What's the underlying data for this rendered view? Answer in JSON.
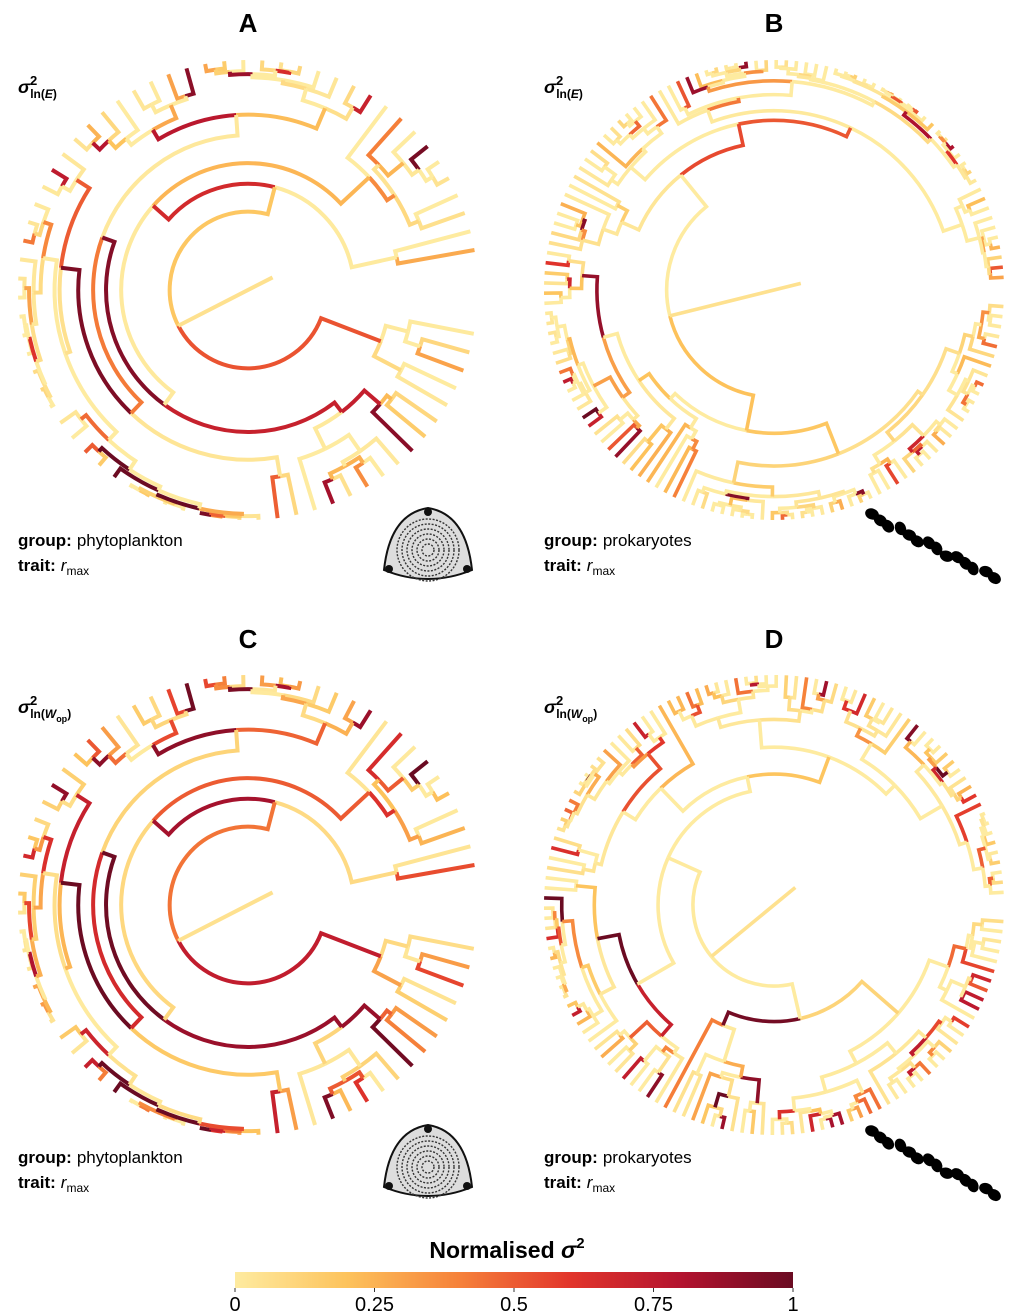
{
  "panels": [
    {
      "letter": "A",
      "variable": {
        "symbol": "σ",
        "superscript": "2",
        "sub_pre": "ln(",
        "sub_var": "E",
        "sub_post": ")"
      },
      "group_label": "group:",
      "group": "phytoplankton",
      "trait_label": "trait:",
      "trait_symbol": "r",
      "trait_subscript": "max"
    },
    {
      "letter": "B",
      "variable": {
        "symbol": "σ",
        "superscript": "2",
        "sub_pre": "ln(",
        "sub_var": "E",
        "sub_post": ")"
      },
      "group_label": "group:",
      "group": "prokaryotes",
      "trait_label": "trait:",
      "trait_symbol": "r",
      "trait_subscript": "max"
    },
    {
      "letter": "C",
      "variable": {
        "symbol": "σ",
        "superscript": "2",
        "sub_pre": "ln(",
        "sub_var": "W",
        "sub_sub": "op",
        "sub_post": ")"
      },
      "group_label": "group:",
      "group": "phytoplankton",
      "trait_label": "trait:",
      "trait_symbol": "r",
      "trait_subscript": "max"
    },
    {
      "letter": "D",
      "variable": {
        "symbol": "σ",
        "superscript": "2",
        "sub_pre": "ln(",
        "sub_var": "W",
        "sub_sub": "op",
        "sub_post": ")"
      },
      "group_label": "group:",
      "group": "prokaryotes",
      "trait_label": "trait:",
      "trait_symbol": "r",
      "trait_subscript": "max"
    }
  ],
  "colorbar": {
    "title": "Normalised ",
    "title_symbol": "σ",
    "title_superscript": "2",
    "lim": [
      0,
      1
    ],
    "ticks": [
      0,
      0.25,
      0.5,
      0.75,
      1
    ],
    "colors": [
      "#feeba0",
      "#fdc35c",
      "#f6823a",
      "#e2352b",
      "#b3132f",
      "#6a0b22"
    ]
  }
}
